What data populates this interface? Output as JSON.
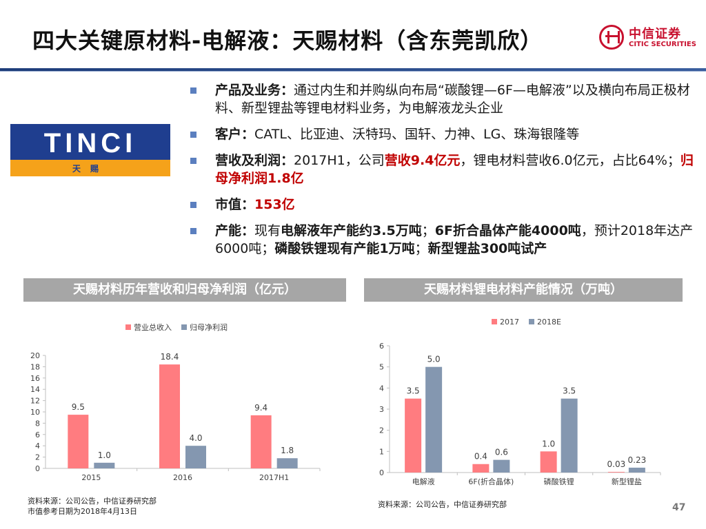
{
  "header": {
    "title": "四大关键原材料-电解液：天赐材料（含东莞凯欣）",
    "brand_cn": "中信证券",
    "brand_en": "CITIC SECURITIES"
  },
  "company_logo": {
    "wordmark": "TINCI",
    "name_cn": "天赐"
  },
  "bullets": {
    "b1": {
      "label": "产品及业务：",
      "text": "通过内生和并购纵向布局“碳酸锂—6F—电解液”以及横向布局正极材料、新型锂盐等锂电材料业务，为电解液龙头企业"
    },
    "b2": {
      "label": "客户：",
      "text": "CATL、比亚迪、沃特玛、国轩、力神、LG、珠海银隆等"
    },
    "b3": {
      "label": "营收及利润：",
      "t1": "2017H1，公司",
      "h1": "营收9.4亿元",
      "t2": "，锂电材料营收6.0亿元，占比64%；",
      "h2": "归母净利润1.8亿"
    },
    "b4": {
      "label": "市值：",
      "value": "153亿"
    },
    "b5": {
      "label": "产能：",
      "t1": "现有",
      "h1": "电解液年产能约3.5万吨",
      "t2": "；",
      "h2": "6F折合晶体产能4000吨",
      "t3": "，预计2018年达产6000吨；",
      "h3": "磷酸铁锂现有产能1万吨",
      "t4": "；",
      "h4": "新型锂盐300吨试产"
    }
  },
  "panels": {
    "left_title": "天赐材料历年营收和归母净利润（亿元）",
    "right_title": "天赐材料锂电材料产能情况（万吨）"
  },
  "chart_data": [
    {
      "type": "bar",
      "title": "天赐材料历年营收和归母净利润（亿元）",
      "categories": [
        "2015",
        "2016",
        "2017H1"
      ],
      "series": [
        {
          "name": "营业总收入",
          "values": [
            9.5,
            18.4,
            9.4
          ],
          "labels": [
            "9.5",
            "18.4",
            "9.4"
          ],
          "color": "#ff7c80"
        },
        {
          "name": "归母净利润",
          "values": [
            1.0,
            4.0,
            1.8
          ],
          "labels": [
            "1.0",
            "4.0",
            "1.8"
          ],
          "color": "#8497b0"
        }
      ],
      "ylim": [
        0,
        20
      ],
      "yticks": [
        0,
        2,
        4,
        6,
        8,
        10,
        12,
        14,
        16,
        18,
        20
      ],
      "legend": "top",
      "grid": false
    },
    {
      "type": "bar",
      "title": "天赐材料锂电材料产能情况（万吨）",
      "categories": [
        "电解液",
        "6F(折合晶体)",
        "磷酸铁锂",
        "新型锂盐"
      ],
      "series": [
        {
          "name": "2017",
          "values": [
            3.5,
            0.4,
            1.0,
            0.03
          ],
          "labels": [
            "3.5",
            "0.4",
            "1.0",
            "0.03"
          ],
          "color": "#ff7c80"
        },
        {
          "name": "2018E",
          "values": [
            5.0,
            0.6,
            3.5,
            0.23
          ],
          "labels": [
            "5.0",
            "0.6",
            "3.5",
            "0.23"
          ],
          "color": "#8497b0"
        }
      ],
      "ylim": [
        0,
        6
      ],
      "yticks": [
        0,
        1,
        2,
        3,
        4,
        5,
        6
      ],
      "legend": "top",
      "grid": false
    }
  ],
  "sources": {
    "left_line1": "资料来源：公司公告，中信证券研究部",
    "left_line2": "市值参考日期为2018年4月13日",
    "right_line1": "资料来源：公司公告，中信证券研究部"
  },
  "page_number": "47"
}
